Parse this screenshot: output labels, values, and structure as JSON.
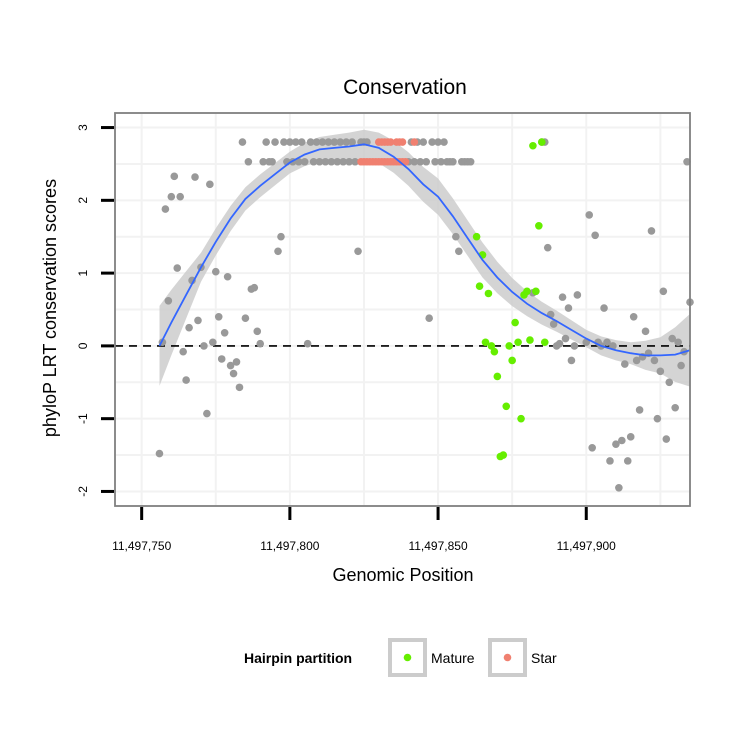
{
  "chart_data": {
    "type": "scatter",
    "title": "Conservation",
    "xlabel": "Genomic Position",
    "ylabel": "phyloP LRT conservation scores",
    "xlim": [
      11497741,
      11497935
    ],
    "ylim": [
      -2.2,
      3.2
    ],
    "x_ticks": [
      11497750,
      11497800,
      11497850,
      11497900
    ],
    "x_tick_labels": [
      "11,497,750",
      "11,497,800",
      "11,497,850",
      "11,497,900"
    ],
    "y_ticks": [
      -2,
      -1,
      0,
      1,
      2,
      3
    ],
    "y_tick_labels": [
      "-2",
      "-1",
      "0",
      "1",
      "2",
      "3"
    ],
    "reference_line_y": 0,
    "grid": true,
    "legend": {
      "title": "Hairpin partition",
      "position": "bottom",
      "entries": [
        {
          "label": "Mature",
          "color": "#66ee00"
        },
        {
          "label": "Star",
          "color": "#f08070"
        }
      ]
    },
    "colors": {
      "other": "#999999",
      "Mature": "#66ee00",
      "Star": "#f08070",
      "smooth": "#3366ff",
      "band": "#cccccc"
    },
    "series": [
      {
        "name": "Other",
        "points": [
          [
            11497756,
            -1.48
          ],
          [
            11497757,
            0.05
          ],
          [
            11497758,
            1.88
          ],
          [
            11497759,
            0.62
          ],
          [
            11497760,
            2.05
          ],
          [
            11497761,
            2.33
          ],
          [
            11497762,
            1.07
          ],
          [
            11497763,
            2.05
          ],
          [
            11497764,
            -0.08
          ],
          [
            11497765,
            -0.47
          ],
          [
            11497766,
            0.25
          ],
          [
            11497767,
            0.9
          ],
          [
            11497768,
            2.32
          ],
          [
            11497769,
            0.35
          ],
          [
            11497770,
            1.08
          ],
          [
            11497771,
            0.0
          ],
          [
            11497772,
            -0.93
          ],
          [
            11497773,
            2.22
          ],
          [
            11497774,
            0.05
          ],
          [
            11497775,
            1.02
          ],
          [
            11497776,
            0.4
          ],
          [
            11497777,
            -0.18
          ],
          [
            11497778,
            0.18
          ],
          [
            11497779,
            0.95
          ],
          [
            11497780,
            -0.27
          ],
          [
            11497781,
            -0.38
          ],
          [
            11497782,
            -0.22
          ],
          [
            11497783,
            -0.57
          ],
          [
            11497784,
            2.8
          ],
          [
            11497785,
            0.38
          ],
          [
            11497786,
            2.53
          ],
          [
            11497787,
            0.78
          ],
          [
            11497788,
            0.8
          ],
          [
            11497789,
            0.2
          ],
          [
            11497790,
            0.03
          ],
          [
            11497791,
            2.53
          ],
          [
            11497792,
            2.8
          ],
          [
            11497793,
            2.53
          ],
          [
            11497794,
            2.53
          ],
          [
            11497795,
            2.8
          ],
          [
            11497796,
            1.3
          ],
          [
            11497797,
            1.5
          ],
          [
            11497798,
            2.8
          ],
          [
            11497799,
            2.53
          ],
          [
            11497800,
            2.8
          ],
          [
            11497801,
            2.53
          ],
          [
            11497802,
            2.8
          ],
          [
            11497803,
            2.53
          ],
          [
            11497804,
            2.8
          ],
          [
            11497805,
            2.53
          ],
          [
            11497806,
            0.03
          ],
          [
            11497807,
            2.8
          ],
          [
            11497808,
            2.53
          ],
          [
            11497809,
            2.8
          ],
          [
            11497810,
            2.53
          ],
          [
            11497811,
            2.8
          ],
          [
            11497812,
            2.53
          ],
          [
            11497813,
            2.8
          ],
          [
            11497814,
            2.53
          ],
          [
            11497815,
            2.8
          ],
          [
            11497816,
            2.53
          ],
          [
            11497817,
            2.8
          ],
          [
            11497818,
            2.53
          ],
          [
            11497819,
            2.8
          ],
          [
            11497820,
            2.53
          ],
          [
            11497821,
            2.8
          ],
          [
            11497822,
            2.53
          ],
          [
            11497823,
            1.3
          ],
          [
            11497824,
            2.8
          ],
          [
            11497825,
            2.8
          ],
          [
            11497826,
            2.8
          ],
          [
            11497840,
            2.53
          ],
          [
            11497841,
            2.8
          ],
          [
            11497842,
            2.53
          ],
          [
            11497843,
            2.8
          ],
          [
            11497844,
            2.53
          ],
          [
            11497845,
            2.8
          ],
          [
            11497846,
            2.53
          ],
          [
            11497847,
            0.38
          ],
          [
            11497848,
            2.8
          ],
          [
            11497849,
            2.53
          ],
          [
            11497850,
            2.8
          ],
          [
            11497851,
            2.53
          ],
          [
            11497852,
            2.8
          ],
          [
            11497853,
            2.53
          ],
          [
            11497854,
            2.53
          ],
          [
            11497855,
            2.53
          ],
          [
            11497856,
            1.5
          ],
          [
            11497857,
            1.3
          ],
          [
            11497858,
            2.53
          ],
          [
            11497859,
            2.53
          ],
          [
            11497860,
            2.53
          ],
          [
            11497861,
            2.53
          ],
          [
            11497882,
            0.73
          ],
          [
            11497885,
            2.8
          ],
          [
            11497886,
            2.8
          ],
          [
            11497887,
            1.35
          ],
          [
            11497888,
            0.43
          ],
          [
            11497889,
            0.3
          ],
          [
            11497890,
            0.0
          ],
          [
            11497891,
            0.03
          ],
          [
            11497892,
            0.67
          ],
          [
            11497893,
            0.1
          ],
          [
            11497894,
            0.52
          ],
          [
            11497895,
            -0.2
          ],
          [
            11497896,
            0.0
          ],
          [
            11497897,
            0.7
          ],
          [
            11497900,
            0.05
          ],
          [
            11497901,
            1.8
          ],
          [
            11497902,
            -1.4
          ],
          [
            11497903,
            1.52
          ],
          [
            11497904,
            0.05
          ],
          [
            11497905,
            0.0
          ],
          [
            11497906,
            0.52
          ],
          [
            11497907,
            0.05
          ],
          [
            11497908,
            -1.58
          ],
          [
            11497909,
            0.0
          ],
          [
            11497910,
            -1.35
          ],
          [
            11497911,
            -1.95
          ],
          [
            11497912,
            -1.3
          ],
          [
            11497913,
            -0.25
          ],
          [
            11497914,
            -1.58
          ],
          [
            11497915,
            -1.25
          ],
          [
            11497916,
            0.4
          ],
          [
            11497917,
            -0.2
          ],
          [
            11497918,
            -0.88
          ],
          [
            11497919,
            -0.15
          ],
          [
            11497920,
            0.2
          ],
          [
            11497921,
            -0.1
          ],
          [
            11497922,
            1.58
          ],
          [
            11497923,
            -0.2
          ],
          [
            11497924,
            -1.0
          ],
          [
            11497925,
            -0.35
          ],
          [
            11497926,
            0.75
          ],
          [
            11497927,
            -1.28
          ],
          [
            11497928,
            -0.5
          ],
          [
            11497929,
            0.1
          ],
          [
            11497930,
            -0.85
          ],
          [
            11497931,
            0.05
          ],
          [
            11497932,
            -0.27
          ],
          [
            11497933,
            -0.08
          ],
          [
            11497934,
            2.53
          ],
          [
            11497935,
            0.6
          ]
        ]
      },
      {
        "name": "Mature",
        "points": [
          [
            11497863,
            1.5
          ],
          [
            11497864,
            0.82
          ],
          [
            11497865,
            1.25
          ],
          [
            11497866,
            0.05
          ],
          [
            11497867,
            0.72
          ],
          [
            11497868,
            0.0
          ],
          [
            11497869,
            -0.08
          ],
          [
            11497870,
            -0.42
          ],
          [
            11497871,
            -1.52
          ],
          [
            11497872,
            -1.5
          ],
          [
            11497873,
            -0.83
          ],
          [
            11497874,
            0.0
          ],
          [
            11497875,
            -0.2
          ],
          [
            11497876,
            0.32
          ],
          [
            11497877,
            0.05
          ],
          [
            11497878,
            -1.0
          ],
          [
            11497879,
            0.7
          ],
          [
            11497880,
            0.75
          ],
          [
            11497881,
            0.08
          ],
          [
            11497882,
            2.75
          ],
          [
            11497883,
            0.75
          ],
          [
            11497884,
            1.65
          ],
          [
            11497885,
            2.8
          ],
          [
            11497886,
            0.05
          ]
        ]
      },
      {
        "name": "Star",
        "points": [
          [
            11497824,
            2.53
          ],
          [
            11497825,
            2.53
          ],
          [
            11497826,
            2.53
          ],
          [
            11497827,
            2.53
          ],
          [
            11497828,
            2.53
          ],
          [
            11497829,
            2.53
          ],
          [
            11497830,
            2.53
          ],
          [
            11497831,
            2.53
          ],
          [
            11497832,
            2.53
          ],
          [
            11497833,
            2.53
          ],
          [
            11497834,
            2.53
          ],
          [
            11497835,
            2.53
          ],
          [
            11497836,
            2.53
          ],
          [
            11497837,
            2.53
          ],
          [
            11497838,
            2.53
          ],
          [
            11497839,
            2.53
          ],
          [
            11497830,
            2.8
          ],
          [
            11497831,
            2.8
          ],
          [
            11497832,
            2.8
          ],
          [
            11497833,
            2.8
          ],
          [
            11497834,
            2.8
          ],
          [
            11497836,
            2.8
          ],
          [
            11497837,
            2.8
          ],
          [
            11497838,
            2.8
          ],
          [
            11497842,
            2.8
          ]
        ]
      }
    ],
    "smooth": [
      [
        11497756,
        0.0
      ],
      [
        11497760,
        0.32
      ],
      [
        11497765,
        0.7
      ],
      [
        11497770,
        1.08
      ],
      [
        11497775,
        1.43
      ],
      [
        11497780,
        1.75
      ],
      [
        11497785,
        2.02
      ],
      [
        11497790,
        2.2
      ],
      [
        11497795,
        2.36
      ],
      [
        11497800,
        2.52
      ],
      [
        11497805,
        2.63
      ],
      [
        11497810,
        2.7
      ],
      [
        11497815,
        2.72
      ],
      [
        11497820,
        2.74
      ],
      [
        11497825,
        2.77
      ],
      [
        11497830,
        2.72
      ],
      [
        11497835,
        2.6
      ],
      [
        11497840,
        2.43
      ],
      [
        11497845,
        2.22
      ],
      [
        11497850,
        2.05
      ],
      [
        11497855,
        1.78
      ],
      [
        11497860,
        1.48
      ],
      [
        11497865,
        1.18
      ],
      [
        11497870,
        0.94
      ],
      [
        11497875,
        0.74
      ],
      [
        11497880,
        0.58
      ],
      [
        11497885,
        0.45
      ],
      [
        11497890,
        0.34
      ],
      [
        11497895,
        0.22
      ],
      [
        11497900,
        0.1
      ],
      [
        11497905,
        0.0
      ],
      [
        11497910,
        -0.06
      ],
      [
        11497915,
        -0.1
      ],
      [
        11497920,
        -0.13
      ],
      [
        11497925,
        -0.13
      ],
      [
        11497930,
        -0.12
      ],
      [
        11497935,
        -0.06
      ]
    ],
    "band_halfwidth": [
      [
        11497756,
        0.55
      ],
      [
        11497770,
        0.2
      ],
      [
        11497785,
        0.16
      ],
      [
        11497800,
        0.15
      ],
      [
        11497825,
        0.2
      ],
      [
        11497850,
        0.25
      ],
      [
        11497865,
        0.24
      ],
      [
        11497880,
        0.17
      ],
      [
        11497900,
        0.12
      ],
      [
        11497915,
        0.15
      ],
      [
        11497925,
        0.25
      ],
      [
        11497935,
        0.5
      ]
    ]
  }
}
